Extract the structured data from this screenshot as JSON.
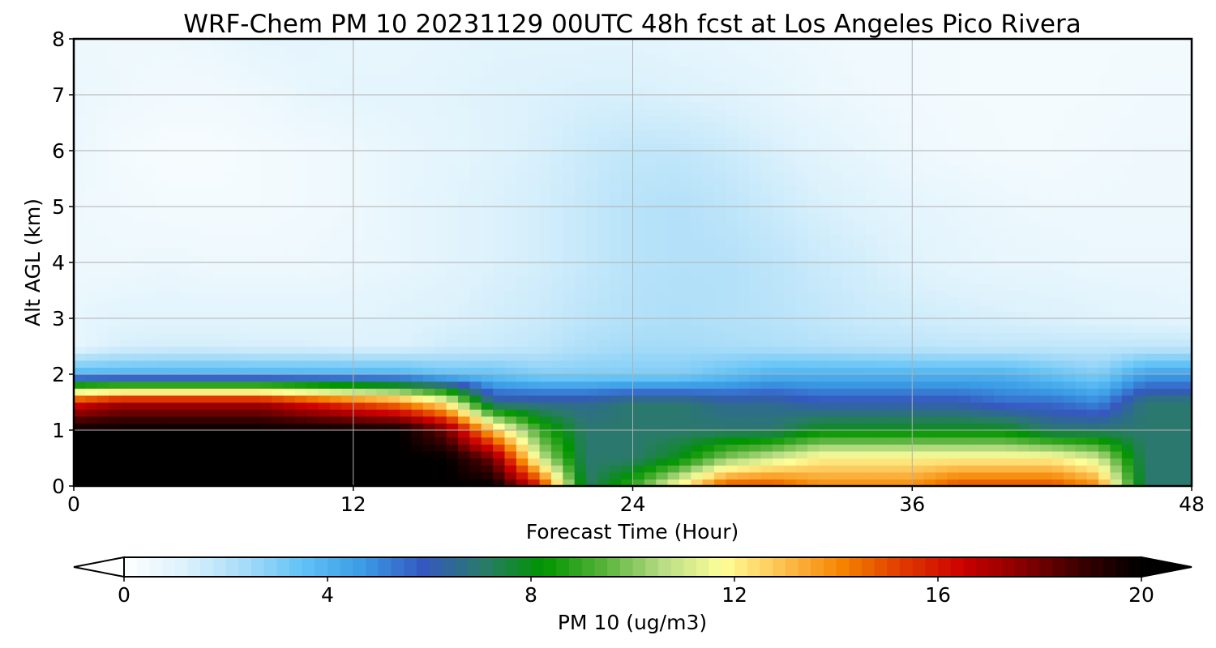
{
  "chart_data": {
    "type": "heatmap",
    "title": "WRF-Chem PM 10  20231129 00UTC 48h fcst at Los Angeles Pico Rivera",
    "xlabel": "Forecast Time (Hour)",
    "ylabel": "Alt AGL (km)",
    "xlim": [
      0,
      48
    ],
    "ylim": [
      0,
      8
    ],
    "x_ticks": [
      0,
      12,
      24,
      36,
      48
    ],
    "y_ticks": [
      0,
      1,
      2,
      3,
      4,
      5,
      6,
      7,
      8
    ],
    "grid": true,
    "x": [
      0,
      2,
      4,
      6,
      8,
      10,
      12,
      14,
      16,
      18,
      20,
      22,
      24,
      26,
      28,
      30,
      32,
      34,
      36,
      38,
      40,
      42,
      44,
      46,
      48
    ],
    "y": [
      0,
      0.5,
      1,
      1.5,
      2,
      2.5,
      3,
      4,
      5,
      6,
      7,
      8
    ],
    "z": [
      [
        20,
        20,
        20,
        20,
        20,
        20,
        20,
        20,
        20,
        20,
        16,
        7,
        9,
        12,
        15,
        15,
        14,
        14,
        14,
        15,
        15,
        15,
        14,
        7,
        7
      ],
      [
        20,
        20,
        20,
        20,
        20,
        20,
        20,
        20,
        20,
        18,
        11,
        7,
        7,
        8,
        10,
        11,
        12,
        12,
        12,
        12,
        12,
        12,
        11,
        7,
        7
      ],
      [
        20,
        20,
        20,
        20,
        20,
        20,
        20,
        20,
        18,
        13,
        9,
        7,
        7,
        7,
        7,
        7,
        8,
        8,
        8,
        8,
        8,
        7,
        7,
        7,
        7
      ],
      [
        16,
        17,
        17,
        17,
        17,
        16,
        15,
        14,
        12,
        6.5,
        6.5,
        6.5,
        7,
        7,
        6.5,
        6.5,
        6,
        6,
        6,
        6,
        5.5,
        5.5,
        5,
        7,
        7
      ],
      [
        4,
        4,
        4,
        4,
        4,
        4,
        4,
        4,
        3.5,
        3.5,
        3,
        3,
        3,
        3,
        3.5,
        4,
        4,
        4,
        4,
        4,
        4,
        3.5,
        3,
        4.5,
        4.5
      ],
      [
        0.8,
        1.3,
        1.4,
        1.4,
        1.3,
        1.3,
        1.2,
        1.2,
        1.5,
        1.6,
        1.8,
        2.2,
        2.4,
        2.4,
        2.3,
        2.2,
        2.1,
        2,
        1.9,
        1.8,
        1.8,
        1.8,
        1.8,
        1.8,
        1.8
      ],
      [
        0.8,
        1,
        1,
        1,
        1,
        1,
        1,
        1.1,
        1.2,
        1.4,
        1.6,
        1.9,
        2.1,
        2.2,
        2.1,
        2,
        1.8,
        1.6,
        1.5,
        1.4,
        1.3,
        1.2,
        1.1,
        1,
        0.9
      ],
      [
        0.6,
        0.6,
        0.7,
        0.6,
        0.6,
        0.6,
        0.7,
        0.8,
        1,
        1.2,
        1.4,
        1.7,
        2,
        2.1,
        2.1,
        1.9,
        1.6,
        1.4,
        1.1,
        0.9,
        0.8,
        0.8,
        0.7,
        0.7,
        0.7
      ],
      [
        0.6,
        0.5,
        0.4,
        0.4,
        0.4,
        0.5,
        0.6,
        0.8,
        1,
        1.2,
        1.4,
        1.7,
        2,
        2.1,
        1.9,
        1.6,
        1.3,
        1.1,
        0.9,
        0.8,
        0.7,
        0.6,
        0.6,
        0.6,
        0.6
      ],
      [
        0.7,
        0.4,
        0.3,
        0.3,
        0.4,
        0.5,
        0.6,
        0.8,
        0.9,
        1.1,
        1.3,
        1.6,
        1.8,
        1.8,
        1.6,
        1.3,
        1,
        0.8,
        0.6,
        0.5,
        0.4,
        0.4,
        0.5,
        0.6,
        0.6
      ],
      [
        0.7,
        0.6,
        0.5,
        0.5,
        0.6,
        0.8,
        0.9,
        0.9,
        1,
        1.1,
        1.2,
        1.3,
        1.3,
        1.2,
        1.1,
        0.9,
        0.7,
        0.6,
        0.5,
        0.4,
        0.4,
        0.4,
        0.4,
        0.5,
        0.5
      ],
      [
        0.6,
        0.6,
        0.6,
        0.7,
        0.9,
        0.9,
        0.8,
        0.8,
        0.9,
        1,
        1,
        1,
        1,
        0.9,
        0.8,
        0.7,
        0.6,
        0.5,
        0.5,
        0.4,
        0.4,
        0.4,
        0.4,
        0.4,
        0.4
      ]
    ],
    "colorbar": {
      "label": "PM 10  (ug/m3)",
      "min": 0,
      "max": 20,
      "ticks": [
        0,
        4,
        8,
        12,
        16,
        20
      ],
      "extend": "both",
      "placement": "bottom",
      "colors": [
        "#ffffff",
        "#ddf2fc",
        "#a8dcf8",
        "#60c2f6",
        "#3a9ae4",
        "#3558c0",
        "#2a7a6a",
        "#009400",
        "#56b23a",
        "#b8dc84",
        "#ffff99",
        "#fdc050",
        "#f58300",
        "#e03a00",
        "#cc0000",
        "#880000",
        "#3a0000",
        "#000000"
      ]
    }
  }
}
